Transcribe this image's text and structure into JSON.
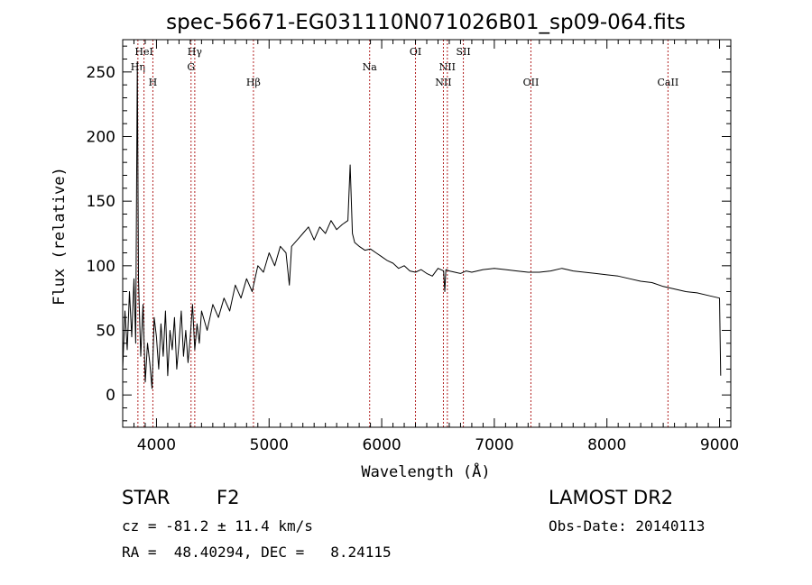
{
  "chart_data": {
    "type": "line",
    "title": "spec-56671-EG031110N071026B01_sp09-064.fits",
    "xlabel": "Wavelength (Å)",
    "ylabel": "Flux (relative)",
    "xlim": [
      3700,
      9100
    ],
    "ylim": [
      -25,
      275
    ],
    "x_ticks": [
      4000,
      5000,
      6000,
      7000,
      8000,
      9000
    ],
    "y_ticks": [
      0,
      50,
      100,
      150,
      200,
      250
    ],
    "grid": false,
    "spectral_lines": [
      {
        "label": "Hη",
        "x": 3835,
        "row": 2
      },
      {
        "label": "HeI",
        "x": 3889,
        "row": 1
      },
      {
        "label": "H",
        "x": 3968,
        "row": 3
      },
      {
        "label": "Hγ",
        "x": 4340,
        "row": 1
      },
      {
        "label": "G",
        "x": 4307,
        "row": 2
      },
      {
        "label": "Hβ",
        "x": 4861,
        "row": 3
      },
      {
        "label": "Na",
        "x": 5893,
        "row": 2
      },
      {
        "label": "OI",
        "x": 6300,
        "row": 1
      },
      {
        "label": "NII",
        "x": 6583,
        "row": 2
      },
      {
        "label": "NII",
        "x": 6548,
        "row": 3
      },
      {
        "label": "OII",
        "x": 7325,
        "row": 3
      },
      {
        "label": "SII",
        "x": 6725,
        "row": 1
      },
      {
        "label": "CaII",
        "x": 8542,
        "row": 3
      }
    ],
    "series": [
      {
        "x": [
          3700,
          3720,
          3740,
          3760,
          3780,
          3800,
          3815,
          3830,
          3840,
          3850,
          3860,
          3880,
          3900,
          3920,
          3940,
          3960,
          3980,
          4000,
          4020,
          4040,
          4060,
          4080,
          4100,
          4120,
          4140,
          4160,
          4180,
          4200,
          4220,
          4240,
          4260,
          4280,
          4300,
          4320,
          4340,
          4360,
          4380,
          4400,
          4450,
          4500,
          4550,
          4600,
          4650,
          4700,
          4750,
          4800,
          4850,
          4900,
          4950,
          5000,
          5050,
          5100,
          5150,
          5180,
          5200,
          5250,
          5300,
          5350,
          5400,
          5450,
          5500,
          5550,
          5600,
          5650,
          5700,
          5720,
          5740,
          5760,
          5800,
          5850,
          5900,
          5950,
          6000,
          6050,
          6100,
          6150,
          6200,
          6250,
          6300,
          6350,
          6400,
          6450,
          6500,
          6550,
          6560,
          6570,
          6600,
          6650,
          6700,
          6750,
          6800,
          6900,
          7000,
          7100,
          7200,
          7300,
          7400,
          7500,
          7600,
          7650,
          7700,
          7800,
          7900,
          8000,
          8100,
          8200,
          8300,
          8400,
          8500,
          8600,
          8700,
          8800,
          8900,
          9000,
          9010
        ],
        "values": [
          20,
          65,
          35,
          80,
          45,
          90,
          40,
          258,
          90,
          60,
          30,
          70,
          10,
          40,
          25,
          5,
          60,
          45,
          20,
          55,
          30,
          65,
          15,
          50,
          35,
          60,
          20,
          40,
          65,
          30,
          50,
          25,
          45,
          70,
          35,
          55,
          40,
          65,
          50,
          70,
          60,
          75,
          65,
          85,
          75,
          90,
          80,
          100,
          95,
          110,
          100,
          115,
          110,
          85,
          115,
          120,
          125,
          130,
          120,
          130,
          125,
          135,
          128,
          132,
          135,
          178,
          125,
          118,
          115,
          112,
          113,
          110,
          107,
          104,
          102,
          98,
          100,
          96,
          95,
          97,
          94,
          92,
          98,
          96,
          80,
          97,
          96,
          95,
          94,
          96,
          95,
          97,
          98,
          97,
          96,
          95,
          95,
          96,
          98,
          97,
          96,
          95,
          94,
          93,
          92,
          90,
          88,
          87,
          84,
          82,
          80,
          79,
          77,
          75,
          15
        ]
      }
    ]
  },
  "info": {
    "class_label": "STAR",
    "subclass_label": "F2",
    "cz_text": "cz = -81.2 ± 11.4 km/s",
    "radec_text": "RA =  48.40294, DEC =   8.24115",
    "survey_label": "LAMOST DR2",
    "obs_date_text": "Obs-Date: 20140113"
  }
}
